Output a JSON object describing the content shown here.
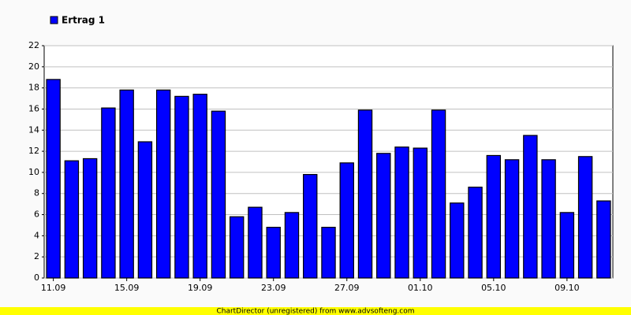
{
  "chart_data": {
    "type": "bar",
    "legend": "top-left",
    "categories": [
      "11.09",
      null,
      null,
      null,
      "15.09",
      null,
      null,
      null,
      "19.09",
      null,
      null,
      null,
      "23.09",
      null,
      null,
      null,
      "27.09",
      null,
      null,
      null,
      "01.10",
      null,
      null,
      null,
      "05.10",
      null,
      null,
      null,
      "09.10",
      null,
      null
    ],
    "series": [
      {
        "name": "Ertrag 1",
        "color": "#0000ff",
        "values": [
          18.8,
          11.1,
          11.3,
          16.1,
          17.8,
          12.9,
          17.8,
          17.2,
          17.4,
          15.8,
          5.8,
          6.7,
          4.8,
          6.2,
          9.8,
          4.8,
          10.9,
          15.9,
          11.8,
          12.4,
          12.3,
          15.9,
          7.1,
          8.6,
          11.6,
          11.2,
          13.5,
          11.2,
          6.2,
          11.5,
          7.3
        ]
      }
    ],
    "ylim": [
      0,
      22
    ],
    "yticks": [
      0,
      2,
      4,
      6,
      8,
      10,
      12,
      14,
      16,
      18,
      20,
      22
    ],
    "grid": true,
    "footer": "ChartDirector (unregistered) from www.advsofteng.com"
  }
}
